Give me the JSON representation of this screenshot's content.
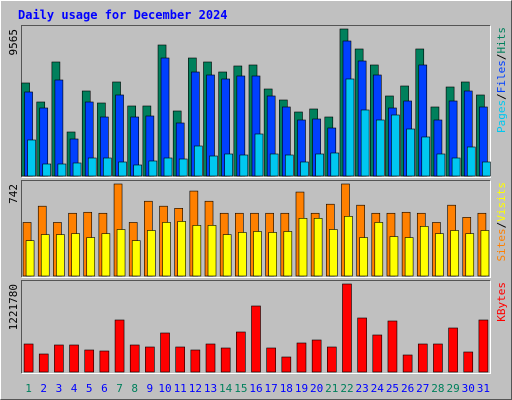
{
  "chart_data": [
    {
      "type": "bar",
      "title": "Daily usage for December 2024",
      "legend_separator": "/",
      "ylim": [
        0,
        9565
      ],
      "yticks": [
        9565
      ],
      "series": [
        {
          "name": "Pages",
          "color": "#00C8F0",
          "values": [
            2343,
            781,
            781,
            846,
            1171,
            1171,
            911,
            716,
            976,
            1171,
            1106,
            1952,
            1301,
            1432,
            1366,
            2733,
            1432,
            1366,
            911,
            1432,
            1497,
            6312,
            4295,
            3644,
            3969,
            3058,
            2538,
            1432,
            1171,
            1887,
            911
          ]
        },
        {
          "name": "Files",
          "color": "#0040FF",
          "values": [
            5466,
            4425,
            6247,
            2408,
            4815,
            3839,
            5271,
            3839,
            3904,
            7678,
            3449,
            6767,
            6572,
            6312,
            6507,
            6507,
            5206,
            4490,
            3644,
            3709,
            3123,
            8784,
            7483,
            6572,
            4425,
            4880,
            7223,
            3644,
            4880,
            5531,
            4490
          ]
        },
        {
          "name": "Hits",
          "color": "#00805C",
          "values": [
            6052,
            4815,
            7418,
            2863,
            5531,
            4750,
            6117,
            4555,
            4555,
            8524,
            4230,
            7678,
            7418,
            6767,
            7158,
            7223,
            5661,
            4945,
            4164,
            4360,
            3839,
            9565,
            8264,
            7223,
            5206,
            5856,
            8264,
            4490,
            5791,
            6117,
            5271
          ]
        }
      ]
    },
    {
      "type": "bar",
      "legend_separator": "/",
      "ylim": [
        0,
        742
      ],
      "yticks": [
        742
      ],
      "series": [
        {
          "name": "Sites",
          "color": "#FF8000",
          "values": [
            432,
            563,
            432,
            506,
            514,
            506,
            742,
            432,
            603,
            563,
            546,
            685,
            603,
            506,
            506,
            506,
            506,
            506,
            677,
            506,
            579,
            742,
            571,
            506,
            506,
            514,
            506,
            432,
            571,
            473,
            506
          ]
        },
        {
          "name": "Visits",
          "color": "#FFFF00",
          "values": [
            285,
            334,
            334,
            342,
            310,
            342,
            375,
            285,
            367,
            432,
            440,
            408,
            408,
            334,
            351,
            359,
            351,
            359,
            465,
            465,
            375,
            481,
            310,
            432,
            318,
            310,
            400,
            342,
            367,
            342,
            367
          ]
        }
      ]
    },
    {
      "type": "bar",
      "ylim": [
        0,
        1221780
      ],
      "yticks": [
        1221780
      ],
      "categories": [
        "1",
        "2",
        "3",
        "4",
        "5",
        "6",
        "7",
        "8",
        "9",
        "10",
        "11",
        "12",
        "13",
        "14",
        "15",
        "16",
        "17",
        "18",
        "19",
        "20",
        "21",
        "22",
        "23",
        "24",
        "25",
        "26",
        "27",
        "28",
        "29",
        "30",
        "31"
      ],
      "category_label_colors": [
        "#00805C",
        "#0000FF",
        "#0000FF",
        "#0000FF",
        "#0000FF",
        "#0000FF",
        "#00805C",
        "#00805C",
        "#0000FF",
        "#0000FF",
        "#0000FF",
        "#0000FF",
        "#0000FF",
        "#00805C",
        "#00805C",
        "#0000FF",
        "#0000FF",
        "#0000FF",
        "#0000FF",
        "#0000FF",
        "#00805C",
        "#00805C",
        "#0000FF",
        "#0000FF",
        "#0000FF",
        "#0000FF",
        "#0000FF",
        "#00805C",
        "#00805C",
        "#0000FF",
        "#0000FF"
      ],
      "series": [
        {
          "name": "KBytes",
          "color": "#FF0000",
          "values": [
            388750,
            249900,
            374870,
            374870,
            305450,
            291560,
            721970,
            374870,
            347100,
            541480,
            347100,
            305450,
            388750,
            333220,
            555360,
            916340,
            333220,
            208260,
            402640,
            444290,
            347100,
            1221780,
            749740,
            513710,
            708090,
            236030,
            388750,
            388750,
            610900,
            277680,
            721970
          ]
        }
      ]
    }
  ]
}
